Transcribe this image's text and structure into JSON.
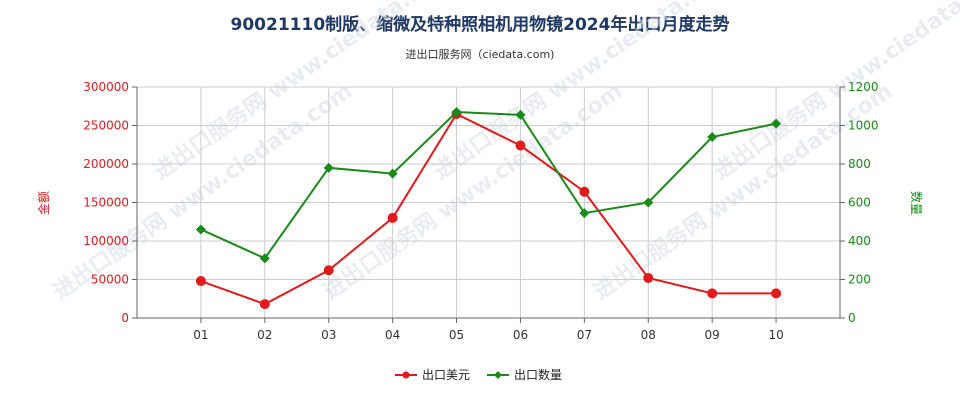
{
  "title": "90021110制版、缩微及特种照相机用物镜2024年出口月度走势",
  "subtitle": "进出口服务网（ciedata.com)",
  "watermark": "进出口服务网 www.ciedata.com",
  "colors": {
    "amount": "#e31a1c",
    "quantity": "#1a8a1a",
    "grid": "#cccccc",
    "axis": "#666666"
  },
  "chart_data": {
    "type": "line",
    "categories": [
      "01",
      "02",
      "03",
      "04",
      "05",
      "06",
      "07",
      "08",
      "09",
      "10"
    ],
    "series": [
      {
        "name": "出口美元",
        "axis": "left",
        "color": "#e31a1c",
        "values": [
          48000,
          18000,
          62000,
          130000,
          265000,
          224000,
          164000,
          52000,
          32000,
          32000
        ]
      },
      {
        "name": "出口数量",
        "axis": "right",
        "color": "#1a8a1a",
        "values": [
          460,
          310,
          780,
          750,
          1070,
          1055,
          545,
          600,
          940,
          1010
        ]
      }
    ],
    "y_left": {
      "label": "金额",
      "min": 0,
      "max": 300000,
      "ticks": [
        0,
        50000,
        100000,
        150000,
        200000,
        250000,
        300000
      ]
    },
    "y_right": {
      "label": "数量",
      "min": 0,
      "max": 1200,
      "ticks": [
        0,
        200,
        400,
        600,
        800,
        1000,
        1200
      ]
    },
    "grid": true,
    "legend_position": "bottom-center"
  }
}
